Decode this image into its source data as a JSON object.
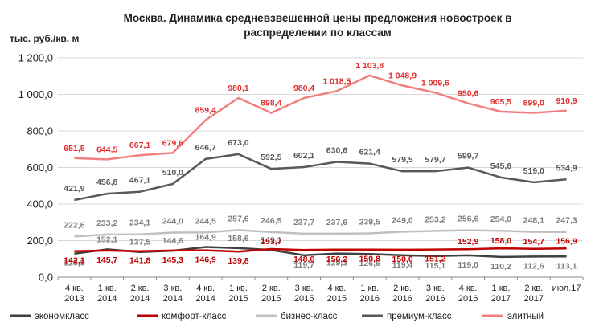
{
  "chart_data": {
    "type": "line",
    "title_lines": [
      "Москва. Динамика средневзвешенной цены предложения новостроек в",
      "распределении по классам"
    ],
    "ylabel": "тыс. руб./кв. м",
    "ylim": [
      0,
      1200
    ],
    "yticks": [
      0,
      200,
      400,
      600,
      800,
      1000,
      1200
    ],
    "ytick_labels": [
      "0,0",
      "200,0",
      "400,0",
      "600,0",
      "800,0",
      "1 000,0",
      "1 200,0"
    ],
    "categories": [
      [
        "4 кв.",
        "2013"
      ],
      [
        "1 кв.",
        "2014"
      ],
      [
        "2 кв.",
        "2014"
      ],
      [
        "3 кв.",
        "2014"
      ],
      [
        "4 кв.",
        "2014"
      ],
      [
        "1 кв.",
        "2015"
      ],
      [
        "2 кв.",
        "2015"
      ],
      [
        "3 кв.",
        "2015"
      ],
      [
        "4 кв.",
        "2015"
      ],
      [
        "1 кв.",
        "2016"
      ],
      [
        "2 кв.",
        "2016"
      ],
      [
        "3 кв.",
        "2016"
      ],
      [
        "4 кв.",
        "2016"
      ],
      [
        "1 кв.",
        "2017"
      ],
      [
        "2 кв.",
        "2017"
      ],
      [
        "июл.17",
        ""
      ]
    ],
    "grid": true,
    "legend_position": "bottom",
    "series": [
      {
        "name": "экономкласс",
        "color": "#404040",
        "values": [
          128.9,
          152.1,
          137.5,
          144.6,
          164.9,
          158.6,
          149.1,
          119.7,
          129.3,
          126.6,
          119.4,
          115.1,
          119.0,
          110.2,
          112.6,
          113.1
        ],
        "labels": [
          "128,9",
          "152,1",
          "137,5",
          "144,6",
          "164,9",
          "158,6",
          "149,1",
          "119,7",
          "129,3",
          "126,6",
          "119,4",
          "115,1",
          "119,0",
          "110,2",
          "112,6",
          "113,1"
        ]
      },
      {
        "name": "комфорт-класс",
        "color": "#c00000",
        "values": [
          142.1,
          145.7,
          141.8,
          145.3,
          146.9,
          139.8,
          153.7,
          148.6,
          150.2,
          150.8,
          150.0,
          151.2,
          152.9,
          158.0,
          154.7,
          156.9
        ],
        "labels": [
          "142,1",
          "145,7",
          "141,8",
          "145,3",
          "146,9",
          "139,8",
          "153,7",
          "148,6",
          "150,2",
          "150,8",
          "150,0",
          "151,2",
          "152,9",
          "158,0",
          "154,7",
          "156,9"
        ]
      },
      {
        "name": "бизнес-класс",
        "color": "#c0c0c0",
        "values": [
          222.6,
          233.2,
          234.1,
          244.0,
          244.5,
          257.6,
          246.5,
          237.7,
          237.6,
          239.5,
          249.0,
          253.2,
          256.6,
          254.0,
          248.1,
          247.3
        ],
        "labels": [
          "222,6",
          "233,2",
          "234,1",
          "244,0",
          "244,5",
          "257,6",
          "246,5",
          "237,7",
          "237,6",
          "239,5",
          "249,0",
          "253,2",
          "256,6",
          "254,0",
          "248,1",
          "247,3"
        ]
      },
      {
        "name": "премиум-класс",
        "color": "#595959",
        "values": [
          421.9,
          456.8,
          467.1,
          510.0,
          646.7,
          673.0,
          592.5,
          602.1,
          630.6,
          621.4,
          579.5,
          579.7,
          599.7,
          545.6,
          519.0,
          534.9
        ],
        "labels": [
          "421,9",
          "456,8",
          "467,1",
          "510,0",
          "646,7",
          "673,0",
          "592,5",
          "602,1",
          "630,6",
          "621,4",
          "579,5",
          "579,7",
          "599,7",
          "545,6",
          "519,0",
          "534,9"
        ]
      },
      {
        "name": "элитный",
        "color": "#f08080",
        "values": [
          651.5,
          644.5,
          667.1,
          679.6,
          859.4,
          980.1,
          898.4,
          980.4,
          1018.5,
          1103.8,
          1048.9,
          1009.6,
          950.6,
          905.5,
          899.0,
          910.9
        ],
        "labels": [
          "651,5",
          "644,5",
          "667,1",
          "679,6",
          "859,4",
          "980,1",
          "898,4",
          "980,4",
          "1 018,5",
          "1 103,8",
          "1 048,9",
          "1 009,6",
          "950,6",
          "905,5",
          "899,0",
          "910,9"
        ]
      }
    ]
  }
}
